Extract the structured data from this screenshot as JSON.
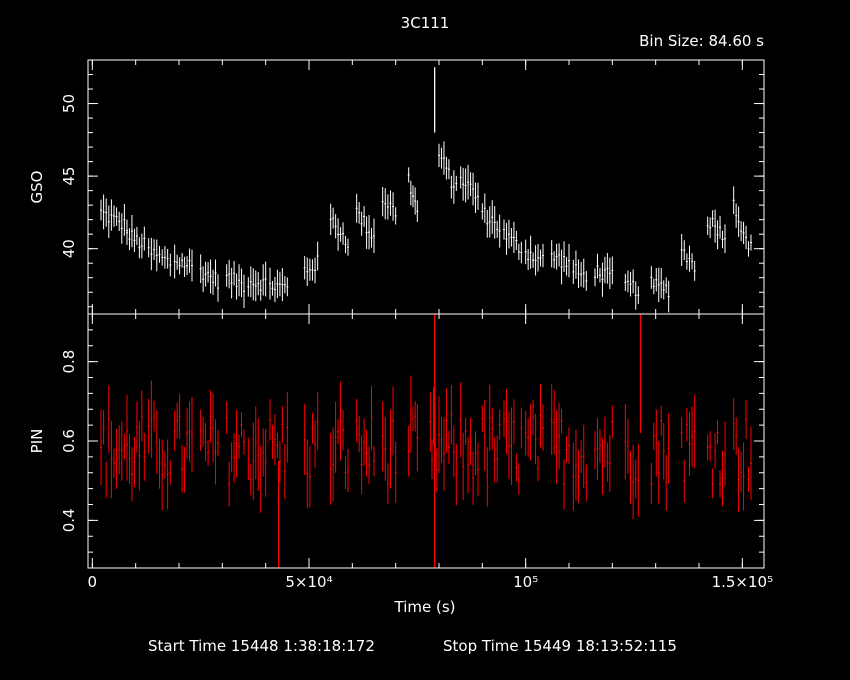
{
  "chart_data": {
    "type": "line",
    "title": "3C111",
    "bin_size_label": "Bin Size:  84.60 s",
    "footer": {
      "start_label": "Start Time 15448  1:38:18:172",
      "stop_label": "Stop Time 15449 18:13:52:115"
    },
    "x_axis": {
      "label": "Time (s)",
      "range": [
        -1000,
        155000
      ],
      "ticks": [
        {
          "value": 0,
          "label": "0"
        },
        {
          "value": 50000,
          "label": "5×10⁴"
        },
        {
          "value": 100000,
          "label": "10⁵"
        },
        {
          "value": 150000,
          "label": "1.5×10⁵"
        }
      ]
    },
    "panels": [
      {
        "name": "GSO",
        "color": "#ffffff",
        "ylabel": "GSO",
        "ylim": [
          35.5,
          53
        ],
        "yticks": [
          {
            "value": 40,
            "label": "40"
          },
          {
            "value": 45,
            "label": "45"
          },
          {
            "value": 50,
            "label": "50"
          }
        ],
        "segments": [
          {
            "x": [
              2000,
              8000
            ],
            "y": [
              42.5,
              41.5
            ]
          },
          {
            "x": [
              8000,
              12000
            ],
            "y": [
              41.0,
              40.2
            ]
          },
          {
            "x": [
              13000,
              18000
            ],
            "y": [
              39.8,
              39.0
            ]
          },
          {
            "x": [
              19000,
              23000
            ],
            "y": [
              39.2,
              38.8
            ]
          },
          {
            "x": [
              25000,
              29000
            ],
            "y": [
              38.5,
              37.8
            ]
          },
          {
            "x": [
              31000,
              35000
            ],
            "y": [
              38.0,
              37.5
            ]
          },
          {
            "x": [
              36000,
              40000
            ],
            "y": [
              37.8,
              37.6
            ]
          },
          {
            "x": [
              41000,
              45000
            ],
            "y": [
              37.5,
              37.3
            ]
          },
          {
            "x": [
              49000,
              52000
            ],
            "y": [
              38.5,
              39.0
            ]
          },
          {
            "x": [
              55000,
              59000
            ],
            "y": [
              42.0,
              40.5
            ]
          },
          {
            "x": [
              61000,
              65000
            ],
            "y": [
              42.5,
              40.8
            ]
          },
          {
            "x": [
              67000,
              70000
            ],
            "y": [
              43.5,
              42.5
            ]
          },
          {
            "x": [
              73000,
              75000
            ],
            "y": [
              44.8,
              42.5
            ]
          },
          {
            "x": [
              80000,
              84000
            ],
            "y": [
              46.5,
              44.0
            ]
          },
          {
            "x": [
              85000,
              89000
            ],
            "y": [
              45.0,
              43.5
            ]
          },
          {
            "x": [
              90000,
              94000
            ],
            "y": [
              42.5,
              41.5
            ]
          },
          {
            "x": [
              95000,
              99000
            ],
            "y": [
              41.0,
              40.0
            ]
          },
          {
            "x": [
              100000,
              104000
            ],
            "y": [
              39.8,
              39.2
            ]
          },
          {
            "x": [
              106000,
              110000
            ],
            "y": [
              39.5,
              39.0
            ]
          },
          {
            "x": [
              111000,
              114000
            ],
            "y": [
              38.5,
              38.0
            ]
          },
          {
            "x": [
              116000,
              120000
            ],
            "y": [
              38.5,
              38.0
            ]
          },
          {
            "x": [
              123000,
              126000
            ],
            "y": [
              37.5,
              37.2
            ]
          },
          {
            "x": [
              129000,
              133000
            ],
            "y": [
              37.5,
              37.2
            ]
          },
          {
            "x": [
              136000,
              139000
            ],
            "y": [
              40.0,
              38.7
            ]
          },
          {
            "x": [
              142000,
              146000
            ],
            "y": [
              42.0,
              41.0
            ]
          },
          {
            "x": [
              148000,
              152000
            ],
            "y": [
              43.0,
              40.0
            ]
          }
        ],
        "spikes": [
          {
            "x": 79000,
            "y_low": 48.0,
            "y_high": 52.5
          }
        ],
        "gaps_end": 38.5
      },
      {
        "name": "PIN",
        "color": "#ff0000",
        "ylabel": "PIN",
        "ylim": [
          0.28,
          0.92
        ],
        "yticks": [
          {
            "value": 0.4,
            "label": "0.4"
          },
          {
            "value": 0.6,
            "label": "0.6"
          },
          {
            "value": 0.8,
            "label": "0.8"
          }
        ],
        "mean": 0.58,
        "segments": [
          {
            "x": [
              2000,
              8000
            ]
          },
          {
            "x": [
              8000,
              12000
            ]
          },
          {
            "x": [
              13000,
              18000
            ]
          },
          {
            "x": [
              19000,
              23000
            ]
          },
          {
            "x": [
              25000,
              29000
            ]
          },
          {
            "x": [
              31000,
              35000
            ]
          },
          {
            "x": [
              36000,
              40000
            ]
          },
          {
            "x": [
              41000,
              45000
            ]
          },
          {
            "x": [
              49000,
              52000
            ]
          },
          {
            "x": [
              55000,
              59000
            ]
          },
          {
            "x": [
              61000,
              65000
            ]
          },
          {
            "x": [
              67000,
              70000
            ]
          },
          {
            "x": [
              73000,
              75000
            ]
          },
          {
            "x": [
              78000,
              79500
            ]
          },
          {
            "x": [
              80000,
              84000
            ]
          },
          {
            "x": [
              85000,
              89000
            ]
          },
          {
            "x": [
              90000,
              94000
            ]
          },
          {
            "x": [
              95000,
              99000
            ]
          },
          {
            "x": [
              100000,
              104000
            ]
          },
          {
            "x": [
              106000,
              110000
            ]
          },
          {
            "x": [
              111000,
              114000
            ]
          },
          {
            "x": [
              116000,
              120000
            ]
          },
          {
            "x": [
              123000,
              126000
            ]
          },
          {
            "x": [
              129000,
              133000
            ]
          },
          {
            "x": [
              136000,
              139000
            ]
          },
          {
            "x": [
              142000,
              146000
            ]
          },
          {
            "x": [
              148000,
              152000
            ]
          }
        ],
        "spikes": [
          {
            "x": 79000,
            "y_low": 0.28,
            "y_high": 0.92
          },
          {
            "x": 43000,
            "y_low": 0.28,
            "y_high": 0.55
          },
          {
            "x": 126500,
            "y_low": 0.62,
            "y_high": 0.92
          }
        ]
      }
    ]
  }
}
